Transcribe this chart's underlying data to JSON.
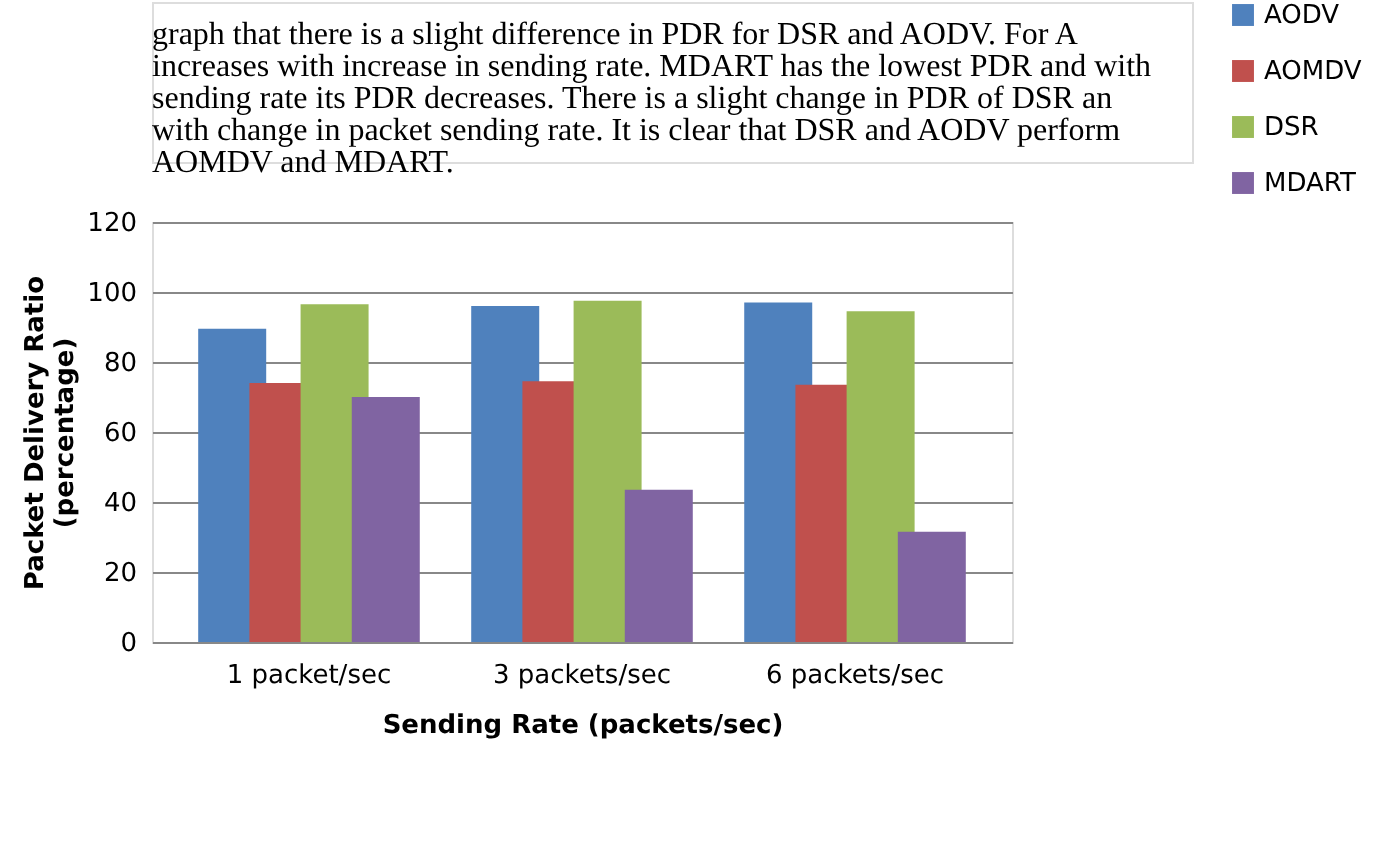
{
  "chart_data": {
    "type": "bar",
    "xlabel": "Sending Rate (packets/sec)",
    "ylabel": "Packet Delivery Ratio (percentage)",
    "categories": [
      "1 packet/sec",
      "3 packets/sec",
      "6 packets/sec"
    ],
    "series": [
      {
        "name": "AODV",
        "color": "#4f81bd",
        "values": [
          89.5,
          96,
          97
        ]
      },
      {
        "name": "AOMDV",
        "color": "#c0504d",
        "values": [
          74,
          74.5,
          73.5
        ]
      },
      {
        "name": "DSR",
        "color": "#9bbb59",
        "values": [
          96.5,
          97.5,
          94.5
        ]
      },
      {
        "name": "MDART",
        "color": "#8064a2",
        "values": [
          70,
          43.5,
          31.5
        ]
      }
    ],
    "ylim": [
      0,
      120
    ],
    "yticks": [
      0,
      20,
      40,
      60,
      80,
      100,
      120
    ],
    "grid": "y",
    "legend": "right",
    "annotations": [
      "graph that there is a slight difference in PDR for DSR and AODV. For A",
      "increases with increase in sending rate. MDART has the lowest PDR and with",
      "sending rate its PDR decreases. There is a slight change in PDR of DSR an",
      "with change in packet sending rate. It is clear that DSR and AODV perform",
      "AOMDV and MDART."
    ]
  }
}
